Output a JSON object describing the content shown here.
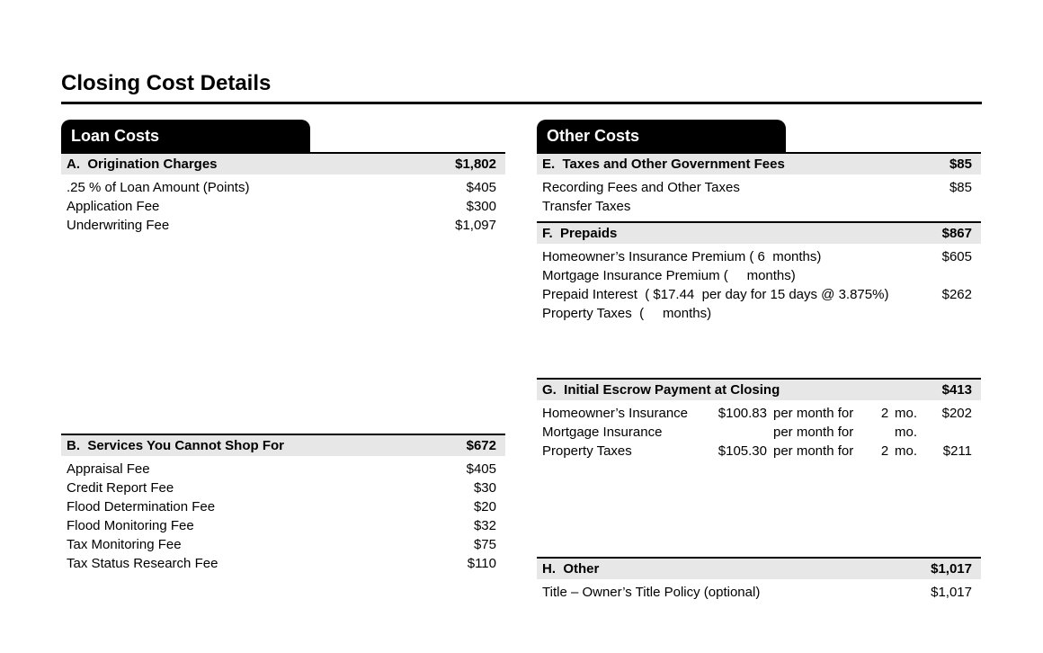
{
  "title": "Closing Cost Details",
  "colors": {
    "tab_background": "#000000",
    "tab_text": "#ffffff",
    "section_header_background": "#e7e7e7",
    "text": "#000000"
  },
  "loan_costs": {
    "tab": "Loan Costs",
    "section_a": {
      "header": "A.  Origination Charges",
      "total": "$1,802",
      "rows": [
        {
          "label": ".25 % of Loan Amount (Points)",
          "value": "$405"
        },
        {
          "label": "Application Fee",
          "value": "$300"
        },
        {
          "label": "Underwriting Fee",
          "value": "$1,097"
        }
      ]
    },
    "section_b": {
      "header": "B.  Services You Cannot Shop For",
      "total": "$672",
      "rows": [
        {
          "label": "Appraisal Fee",
          "value": "$405"
        },
        {
          "label": "Credit Report Fee",
          "value": "$30"
        },
        {
          "label": "Flood Determination Fee",
          "value": "$20"
        },
        {
          "label": "Flood Monitoring Fee",
          "value": "$32"
        },
        {
          "label": "Tax Monitoring Fee",
          "value": "$75"
        },
        {
          "label": "Tax Status Research Fee",
          "value": "$110"
        }
      ]
    }
  },
  "other_costs": {
    "tab": "Other Costs",
    "section_e": {
      "header": "E.  Taxes and Other Government Fees",
      "total": "$85",
      "rows": [
        {
          "label": "Recording Fees and Other Taxes",
          "value": "$85"
        },
        {
          "label": "Transfer Taxes",
          "value": ""
        }
      ]
    },
    "section_f": {
      "header": "F.  Prepaids",
      "total": "$867",
      "rows": [
        {
          "label": "Homeowner’s Insurance Premium ( 6  months)",
          "value": "$605"
        },
        {
          "label": "Mortgage Insurance Premium (     months)",
          "value": ""
        },
        {
          "label": "Prepaid Interest  ( $17.44  per day for 15 days @ 3.875%)",
          "value": "$262"
        },
        {
          "label": "Property Taxes  (     months)",
          "value": ""
        }
      ]
    },
    "section_g": {
      "header": "G.  Initial Escrow Payment at Closing",
      "total": "$413",
      "rows": [
        {
          "label": "Homeowner’s Insurance",
          "rate": "$100.83",
          "per": "per month for",
          "months": "2",
          "mo": "mo.",
          "value": "$202"
        },
        {
          "label": "Mortgage Insurance",
          "rate": "",
          "per": "per month for",
          "months": "",
          "mo": "mo.",
          "value": ""
        },
        {
          "label": "Property Taxes",
          "rate": "$105.30",
          "per": "per month for",
          "months": "2",
          "mo": "mo.",
          "value": "$211"
        }
      ]
    },
    "section_h": {
      "header": "H.  Other",
      "total": "$1,017",
      "rows": [
        {
          "label": "Title – Owner’s Title Policy (optional)",
          "value": "$1,017"
        }
      ]
    }
  }
}
